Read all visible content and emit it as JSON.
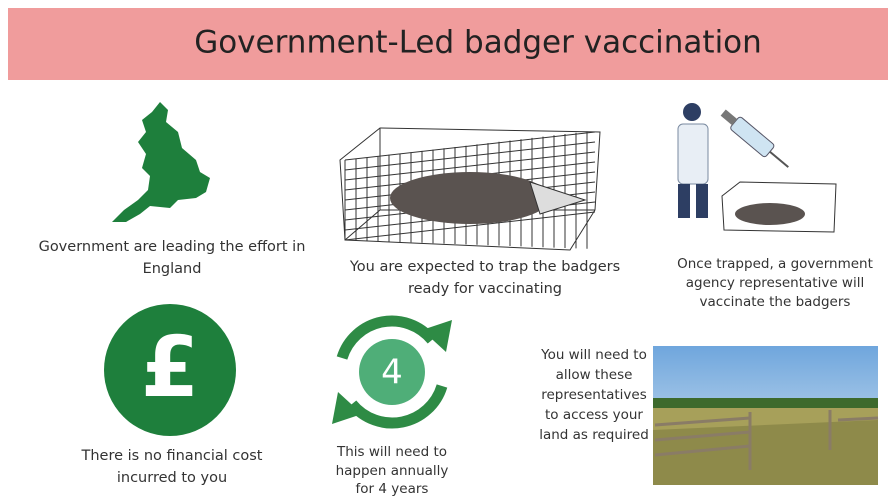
{
  "header": {
    "title": "Government-Led badger vaccination"
  },
  "items": [
    {
      "caption": [
        "Government are leading the effort in",
        "England"
      ]
    },
    {
      "caption": [
        "You are expected to trap the badgers",
        "ready for vaccinating"
      ]
    },
    {
      "caption": [
        "Once trapped, a government",
        "agency representative will",
        "vaccinate the badgers"
      ]
    },
    {
      "icon_text": "£",
      "caption": [
        "There is no financial cost",
        "incurred to you"
      ]
    },
    {
      "icon_text": "4",
      "caption": [
        "This will need to",
        "happen annually",
        "for 4 years"
      ]
    },
    {
      "caption": [
        "You will need to",
        "allow these",
        "representatives",
        "to access your",
        "land as required"
      ]
    }
  ]
}
